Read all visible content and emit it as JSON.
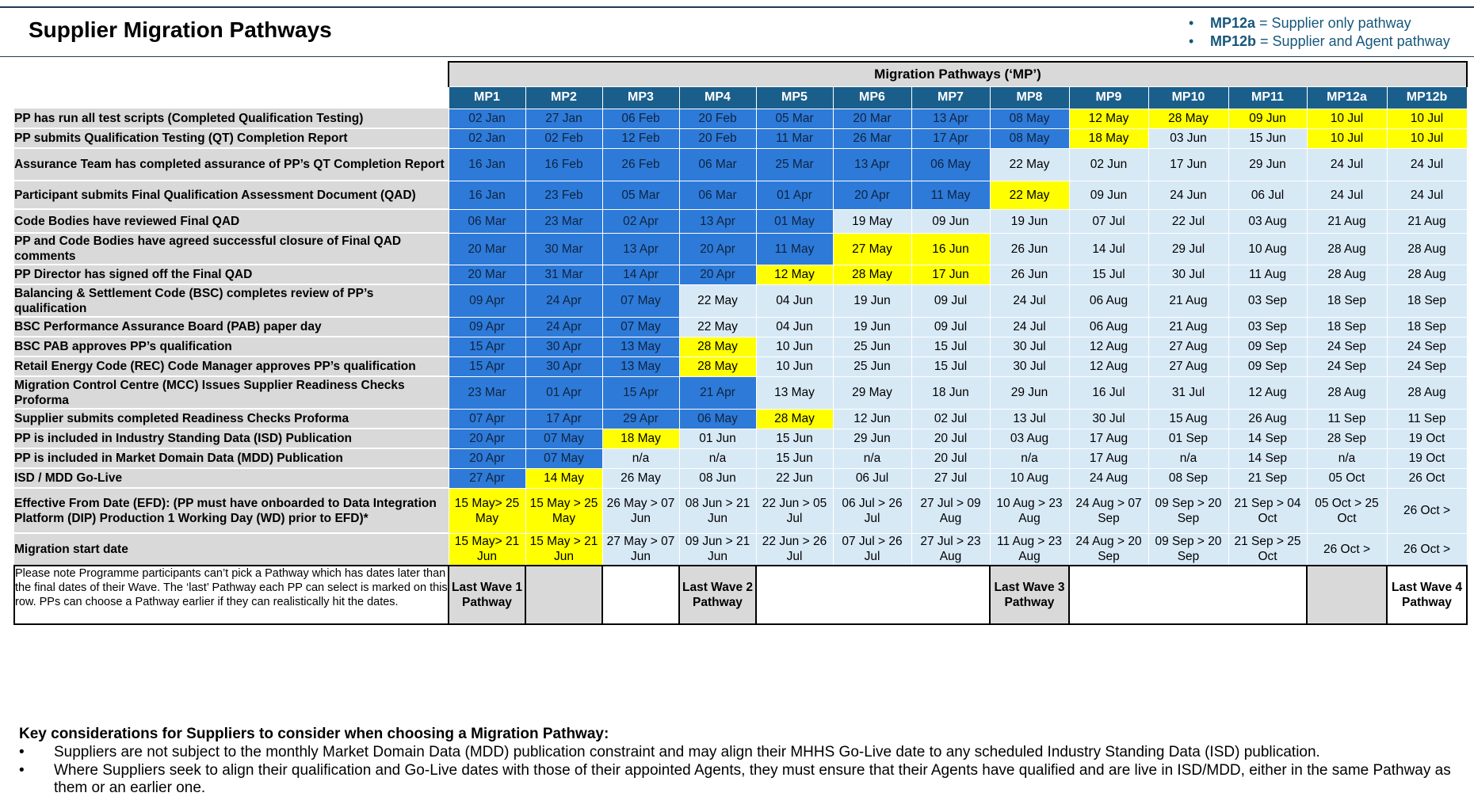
{
  "title": "Supplier Migration Pathways",
  "legend": [
    {
      "code": "MP12a",
      "text": " = Supplier only pathway"
    },
    {
      "code": "MP12b",
      "text": " = Supplier and Agent pathway"
    }
  ],
  "table": {
    "group_header": "Migration Pathways (‘MP’)",
    "columns": [
      "MP1",
      "MP2",
      "MP3",
      "MP4",
      "MP5",
      "MP6",
      "MP7",
      "MP8",
      "MP9",
      "MP10",
      "MP11",
      "MP12a",
      "MP12b"
    ],
    "rows": [
      {
        "label": "PP has run all test scripts (Completed Qualification Testing)",
        "cells": [
          "02 Jan",
          "27 Jan",
          "06 Feb",
          "20 Feb",
          "05 Mar",
          "20 Mar",
          "13 Apr",
          "08 May",
          "12 May",
          "28 May",
          "09 Jun",
          "10 Jul",
          "10 Jul"
        ],
        "status": [
          "completed",
          "completed",
          "completed",
          "completed",
          "completed",
          "completed",
          "completed",
          "completed",
          "latest",
          "latest",
          "latest",
          "latest",
          "latest"
        ]
      },
      {
        "label": "PP submits Qualification Testing (QT) Completion Report",
        "cells": [
          "02 Jan",
          "02 Feb",
          "12 Feb",
          "20 Feb",
          "11 Mar",
          "26 Mar",
          "17 Apr",
          "08 May",
          "18 May",
          "03 Jun",
          "15 Jun",
          "10 Jul",
          "10 Jul"
        ],
        "status": [
          "completed",
          "completed",
          "completed",
          "completed",
          "completed",
          "completed",
          "completed",
          "completed",
          "latest",
          "future",
          "future",
          "latest",
          "latest"
        ]
      },
      {
        "label": "Assurance Team has completed assurance of PP’s QT Completion Report",
        "cells": [
          "16 Jan",
          "16 Feb",
          "26 Feb",
          "06 Mar",
          "25 Mar",
          "13 Apr",
          "06 May",
          "22 May",
          "02 Jun",
          "17 Jun",
          "29 Jun",
          "24 Jul",
          "24 Jul"
        ],
        "status": [
          "completed",
          "completed",
          "completed",
          "completed",
          "completed",
          "completed",
          "completed",
          "future",
          "future",
          "future",
          "future",
          "future",
          "future"
        ]
      },
      {
        "label": "Participant submits Final Qualification Assessment Document (QAD)",
        "cells": [
          "16 Jan",
          "23 Feb",
          "05 Mar",
          "06 Mar",
          "01 Apr",
          "20 Apr",
          "11 May",
          "22 May",
          "09 Jun",
          "24 Jun",
          "06 Jul",
          "24 Jul",
          "24 Jul"
        ],
        "status": [
          "completed",
          "completed",
          "completed",
          "completed",
          "completed",
          "completed",
          "completed",
          "latest",
          "future",
          "future",
          "future",
          "future",
          "future"
        ]
      },
      {
        "label": "Code Bodies have reviewed Final QAD",
        "cells": [
          "06 Mar",
          "23 Mar",
          "02 Apr",
          "13 Apr",
          "01 May",
          "19 May",
          "09 Jun",
          "19 Jun",
          "07 Jul",
          "22 Jul",
          "03 Aug",
          "21 Aug",
          "21 Aug"
        ],
        "status": [
          "completed",
          "completed",
          "completed",
          "completed",
          "completed",
          "future",
          "future",
          "future",
          "future",
          "future",
          "future",
          "future",
          "future"
        ]
      },
      {
        "label": "PP and Code Bodies have agreed successful closure of Final QAD comments",
        "cells": [
          "20 Mar",
          "30 Mar",
          "13 Apr",
          "20 Apr",
          "11 May",
          "27 May",
          "16 Jun",
          "26 Jun",
          "14 Jul",
          "29 Jul",
          "10 Aug",
          "28 Aug",
          "28 Aug"
        ],
        "status": [
          "completed",
          "completed",
          "completed",
          "completed",
          "completed",
          "latest",
          "latest",
          "future",
          "future",
          "future",
          "future",
          "future",
          "future"
        ]
      },
      {
        "label": "PP Director has signed off the Final QAD",
        "cells": [
          "20 Mar",
          "31 Mar",
          "14 Apr",
          "20 Apr",
          "12 May",
          "28 May",
          "17 Jun",
          "26 Jun",
          "15 Jul",
          "30 Jul",
          "11 Aug",
          "28 Aug",
          "28 Aug"
        ],
        "status": [
          "completed",
          "completed",
          "completed",
          "completed",
          "latest",
          "latest",
          "latest",
          "future",
          "future",
          "future",
          "future",
          "future",
          "future"
        ]
      },
      {
        "label": "Balancing & Settlement Code (BSC) completes review of PP’s qualification",
        "cells": [
          "09 Apr",
          "24 Apr",
          "07 May",
          "22 May",
          "04 Jun",
          "19 Jun",
          "09 Jul",
          "24 Jul",
          "06 Aug",
          "21 Aug",
          "03 Sep",
          "18 Sep",
          "18 Sep"
        ],
        "status": [
          "completed",
          "completed",
          "completed",
          "future",
          "future",
          "future",
          "future",
          "future",
          "future",
          "future",
          "future",
          "future",
          "future"
        ]
      },
      {
        "label": "BSC Performance Assurance Board (PAB) paper day",
        "cells": [
          "09 Apr",
          "24 Apr",
          "07 May",
          "22 May",
          "04 Jun",
          "19 Jun",
          "09 Jul",
          "24 Jul",
          "06 Aug",
          "21 Aug",
          "03 Sep",
          "18 Sep",
          "18 Sep"
        ],
        "status": [
          "completed",
          "completed",
          "completed",
          "future",
          "future",
          "future",
          "future",
          "future",
          "future",
          "future",
          "future",
          "future",
          "future"
        ]
      },
      {
        "label": "BSC PAB approves PP’s qualification",
        "cells": [
          "15 Apr",
          "30 Apr",
          "13 May",
          "28 May",
          "10 Jun",
          "25 Jun",
          "15 Jul",
          "30 Jul",
          "12 Aug",
          "27 Aug",
          "09 Sep",
          "24 Sep",
          "24 Sep"
        ],
        "status": [
          "completed",
          "completed",
          "completed",
          "latest",
          "future",
          "future",
          "future",
          "future",
          "future",
          "future",
          "future",
          "future",
          "future"
        ]
      },
      {
        "label": "Retail Energy Code (REC) Code Manager approves PP’s qualification",
        "cells": [
          "15 Apr",
          "30 Apr",
          "13 May",
          "28 May",
          "10 Jun",
          "25 Jun",
          "15 Jul",
          "30 Jul",
          "12 Aug",
          "27 Aug",
          "09 Sep",
          "24 Sep",
          "24 Sep"
        ],
        "status": [
          "completed",
          "completed",
          "completed",
          "latest",
          "future",
          "future",
          "future",
          "future",
          "future",
          "future",
          "future",
          "future",
          "future"
        ]
      },
      {
        "label": "Migration Control Centre (MCC) Issues Supplier Readiness Checks Proforma",
        "cells": [
          "23 Mar",
          "01 Apr",
          "15 Apr",
          "21 Apr",
          "13 May",
          "29 May",
          "18 Jun",
          "29 Jun",
          "16 Jul",
          "31 Jul",
          "12 Aug",
          "28 Aug",
          "28 Aug"
        ],
        "status": [
          "completed",
          "completed",
          "completed",
          "completed",
          "future",
          "future",
          "future",
          "future",
          "future",
          "future",
          "future",
          "future",
          "future"
        ]
      },
      {
        "label": "Supplier submits completed Readiness Checks Proforma",
        "cells": [
          "07 Apr",
          "17 Apr",
          "29 Apr",
          "06 May",
          "28 May",
          "12 Jun",
          "02 Jul",
          "13 Jul",
          "30 Jul",
          "15 Aug",
          "26 Aug",
          "11 Sep",
          "11 Sep"
        ],
        "status": [
          "completed",
          "completed",
          "completed",
          "completed",
          "latest",
          "future",
          "future",
          "future",
          "future",
          "future",
          "future",
          "future",
          "future"
        ]
      },
      {
        "label": "PP is included in Industry Standing Data (ISD) Publication",
        "cells": [
          "20 Apr",
          "07 May",
          "18 May",
          "01 Jun",
          "15 Jun",
          "29 Jun",
          "20 Jul",
          "03 Aug",
          "17 Aug",
          "01 Sep",
          "14 Sep",
          "28 Sep",
          "19 Oct"
        ],
        "status": [
          "completed",
          "completed",
          "latest",
          "future",
          "future",
          "future",
          "future",
          "future",
          "future",
          "future",
          "future",
          "future",
          "future"
        ]
      },
      {
        "label": "PP is included in Market Domain Data (MDD) Publication",
        "cells": [
          "20 Apr",
          "07 May",
          "n/a",
          "n/a",
          "15 Jun",
          "n/a",
          "20 Jul",
          "n/a",
          "17 Aug",
          "n/a",
          "14 Sep",
          "n/a",
          "19 Oct"
        ],
        "status": [
          "completed",
          "completed",
          "future",
          "future",
          "future",
          "future",
          "future",
          "future",
          "future",
          "future",
          "future",
          "future",
          "future"
        ]
      },
      {
        "label": "ISD / MDD Go-Live",
        "cells": [
          "27 Apr",
          "14 May",
          "26 May",
          "08 Jun",
          "22 Jun",
          "06 Jul",
          "27 Jul",
          "10 Aug",
          "24 Aug",
          "08 Sep",
          "21 Sep",
          "05 Oct",
          "26 Oct"
        ],
        "status": [
          "completed",
          "latest",
          "future",
          "future",
          "future",
          "future",
          "future",
          "future",
          "future",
          "future",
          "future",
          "future",
          "future"
        ]
      },
      {
        "label": "Effective From Date (EFD): (PP must have onboarded to Data Integration Platform (DIP) Production 1 Working Day (WD) prior to EFD)*",
        "cells": [
          "15 May> 25 May",
          "15 May > 25 May",
          "26 May > 07 Jun",
          "08 Jun > 21 Jun",
          "22 Jun > 05 Jul",
          "06 Jul > 26 Jul",
          "27 Jul > 09 Aug",
          "10 Aug > 23 Aug",
          "24 Aug > 07 Sep",
          "09 Sep > 20 Sep",
          "21 Sep > 04 Oct",
          "05 Oct > 25 Oct",
          "26 Oct >"
        ],
        "status": [
          "latest",
          "latest",
          "future",
          "future",
          "future",
          "future",
          "future",
          "future",
          "future",
          "future",
          "future",
          "future",
          "future"
        ]
      },
      {
        "label": "Migration start date",
        "cells": [
          "15 May> 21 Jun",
          "15 May > 21 Jun",
          "27 May > 07 Jun",
          "09 Jun > 21 Jun",
          "22 Jun > 26 Jul",
          "07 Jul > 26 Jul",
          "27 Jul > 23 Aug",
          "11 Aug > 23 Aug",
          "24 Aug > 20 Sep",
          "09 Sep > 20 Sep",
          "21 Sep > 25 Oct",
          "26 Oct >",
          "26 Oct >"
        ],
        "status": [
          "latest",
          "latest",
          "future",
          "future",
          "future",
          "future",
          "future",
          "future",
          "future",
          "future",
          "future",
          "future",
          "future"
        ]
      }
    ],
    "note": "Please note Programme participants can’t pick a Pathway which has dates later than the final dates of their Wave. The ‘last’ Pathway each PP can select is marked on this row. PPs can choose a Pathway earlier if they can realistically hit the dates.",
    "waves": [
      {
        "text": "Last Wave 1 Pathway",
        "span": 1,
        "shade": "gray"
      },
      {
        "text": "",
        "span": 1,
        "shade": "gray"
      },
      {
        "text": "",
        "span": 1,
        "shade": "white"
      },
      {
        "text": "Last Wave 2 Pathway",
        "span": 1,
        "shade": "gray"
      },
      {
        "text": "",
        "span": 3,
        "shade": "white"
      },
      {
        "text": "Last Wave 3 Pathway",
        "span": 1,
        "shade": "gray"
      },
      {
        "text": "",
        "span": 3,
        "shade": "white"
      },
      {
        "text": "",
        "span": 1,
        "shade": "gray"
      },
      {
        "text": "Last Wave 4 Pathway",
        "span": 1,
        "shade": "white"
      }
    ]
  },
  "colors": {
    "completed": "#2e7ad8",
    "latest": "#ffff00",
    "future": "#d8e9f6",
    "header": "#1a5f8c",
    "label_bg": "#d9d9d9"
  },
  "key_considerations": {
    "heading": "Key considerations for Suppliers to consider when choosing a Migration Pathway:",
    "points": [
      "Suppliers are not subject to the monthly Market Domain Data (MDD) publication constraint and may align their MHHS Go-Live date to any scheduled Industry Standing Data (ISD) publication.",
      "Where Suppliers seek to align their qualification and Go-Live dates with those of their appointed Agents, they must ensure that their Agents have qualified and are live in ISD/MDD, either in the same Pathway as them or an earlier one."
    ]
  }
}
